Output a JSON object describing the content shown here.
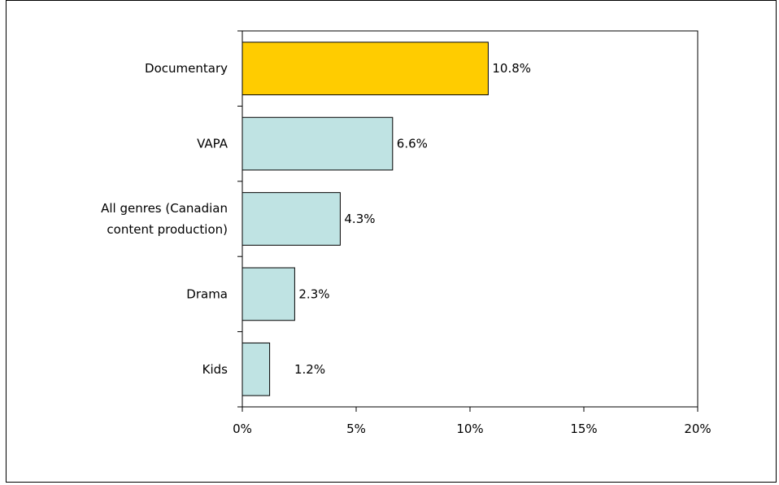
{
  "chart_data": {
    "type": "bar",
    "orientation": "horizontal",
    "title": "",
    "xlabel": "",
    "ylabel": "",
    "categories": [
      [
        "Documentary"
      ],
      [
        "VAPA"
      ],
      [
        "All genres (Canadian",
        "content production)"
      ],
      [
        "Drama"
      ],
      [
        "Kids"
      ]
    ],
    "values": [
      10.8,
      6.6,
      4.3,
      2.3,
      1.2
    ],
    "data_labels": [
      "10.8%",
      "6.6%",
      "4.3%",
      "2.3%",
      "1.2%"
    ],
    "xlim": [
      0,
      20
    ],
    "x_ticks": [
      0,
      5,
      10,
      15,
      20
    ],
    "x_tick_labels": [
      "0%",
      "5%",
      "10%",
      "15%",
      "20%"
    ],
    "grid": false,
    "legend": "none",
    "colors": {
      "highlight_bar": "#FFCC00",
      "bar": "#BFE3E3",
      "bar_outline": "#000000",
      "axis": "#000000"
    },
    "highlighted_index": 0
  }
}
